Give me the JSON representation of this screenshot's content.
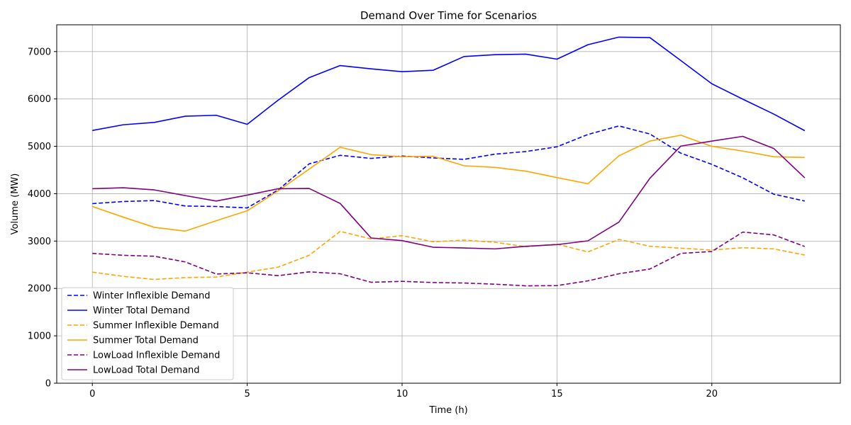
{
  "chart_data": {
    "type": "line",
    "title": "Demand Over Time for Scenarios",
    "xlabel": "Time (h)",
    "ylabel": "Volume (MW)",
    "xlim": [
      -1.15,
      24.15
    ],
    "ylim": [
      0,
      7565
    ],
    "xticks": [
      0,
      5,
      10,
      15,
      20
    ],
    "yticks": [
      0,
      1000,
      2000,
      3000,
      4000,
      5000,
      6000,
      7000
    ],
    "grid": true,
    "legend_position": "lower-left",
    "x": [
      0,
      1,
      2,
      3,
      4,
      5,
      6,
      7,
      8,
      9,
      10,
      11,
      12,
      13,
      14,
      15,
      16,
      17,
      18,
      19,
      20,
      21,
      22,
      23
    ],
    "series": [
      {
        "name": "Winter Inflexible Demand",
        "color": "#0000ff",
        "dash": true,
        "values": [
          3790,
          3835,
          3855,
          3740,
          3730,
          3700,
          4080,
          4630,
          4810,
          4745,
          4795,
          4755,
          4725,
          4835,
          4890,
          4990,
          5250,
          5430,
          5260,
          4855,
          4620,
          4335,
          3990,
          3845
        ]
      },
      {
        "name": "Winter Total Demand",
        "color": "#0000ff",
        "dash": false,
        "values": [
          5335,
          5455,
          5505,
          5635,
          5655,
          5465,
          5975,
          6450,
          6705,
          6635,
          6575,
          6605,
          6895,
          6935,
          6945,
          6840,
          7145,
          7305,
          7295,
          6810,
          6320,
          5995,
          5680,
          5330
        ]
      },
      {
        "name": "Summer Inflexible Demand",
        "color": "#ffa500",
        "dash": true,
        "values": [
          2345,
          2255,
          2190,
          2230,
          2240,
          2345,
          2450,
          2700,
          3205,
          3045,
          3115,
          2985,
          3020,
          2975,
          2880,
          2935,
          2770,
          3035,
          2890,
          2850,
          2810,
          2860,
          2835,
          2705
        ]
      },
      {
        "name": "Summer Total Demand",
        "color": "#ffa500",
        "dash": false,
        "values": [
          3730,
          3505,
          3290,
          3210,
          3430,
          3640,
          4060,
          4520,
          4980,
          4825,
          4780,
          4790,
          4590,
          4555,
          4475,
          4340,
          4210,
          4800,
          5110,
          5235,
          5000,
          4900,
          4780,
          4765
        ]
      },
      {
        "name": "LowLoad Inflexible Demand",
        "color": "#800080",
        "dash": true,
        "values": [
          2740,
          2700,
          2680,
          2560,
          2305,
          2330,
          2270,
          2350,
          2310,
          2130,
          2150,
          2125,
          2115,
          2090,
          2055,
          2060,
          2160,
          2310,
          2410,
          2740,
          2780,
          3190,
          3130,
          2885
        ]
      },
      {
        "name": "LowLoad Total Demand",
        "color": "#800080",
        "dash": false,
        "values": [
          4105,
          4125,
          4080,
          3960,
          3845,
          3970,
          4105,
          4110,
          3795,
          3065,
          3010,
          2870,
          2855,
          2835,
          2890,
          2925,
          3005,
          3400,
          4325,
          5005,
          5110,
          5210,
          4955,
          4335
        ]
      }
    ]
  }
}
